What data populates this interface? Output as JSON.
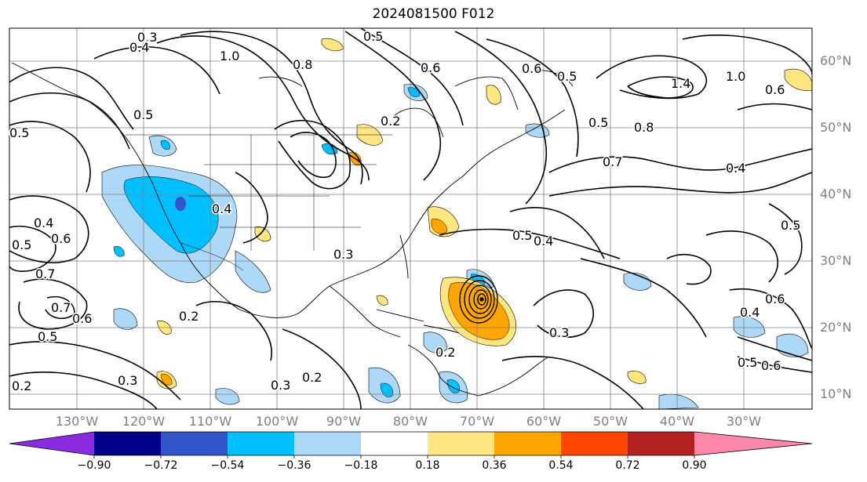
{
  "title": "2024081500 F012",
  "latitude_labels": [
    "60°N",
    "50°N",
    "40°N",
    "30°N",
    "20°N",
    "10°N"
  ],
  "longitude_labels": [
    "130°W",
    "120°W",
    "110°W",
    "100°W",
    "90°W",
    "80°W",
    "70°W",
    "60°W",
    "50°W",
    "40°W",
    "30°W"
  ],
  "contour_labels": [
    "0.3",
    "0.4",
    "1.0",
    "0.8",
    "0.5",
    "0.6",
    "0.6",
    "0.5",
    "1.4",
    "1.0",
    "0.6",
    "0.5",
    "0.8",
    "0.7",
    "0.4",
    "0.5",
    "0.4",
    "0.6",
    "0.5",
    "0.7",
    "0.6",
    "0.7",
    "0.5",
    "0.5",
    "0.2",
    "0.3",
    "0.2",
    "0.3",
    "0.2",
    "0.4",
    "0.5",
    "0.4",
    "0.3",
    "0.5",
    "0.6",
    "0.4",
    "0.2",
    "0.3",
    "0.2",
    "0.5",
    "0.6"
  ],
  "colorbar": {
    "ticks": [
      "−0.90",
      "−0.72",
      "−0.54",
      "−0.36",
      "−0.18",
      "0.18",
      "0.36",
      "0.54",
      "0.72",
      "0.90"
    ],
    "colors": [
      "#8a2be2",
      "#00008b",
      "#3355cc",
      "#00bfff",
      "#add8f7",
      "#ffffff",
      "#ffe680",
      "#ffa500",
      "#ff4500",
      "#b22222",
      "#ff88aa"
    ]
  },
  "colors": {
    "contour": "#000000",
    "grid": "#808080",
    "tick_label": "#808080"
  }
}
